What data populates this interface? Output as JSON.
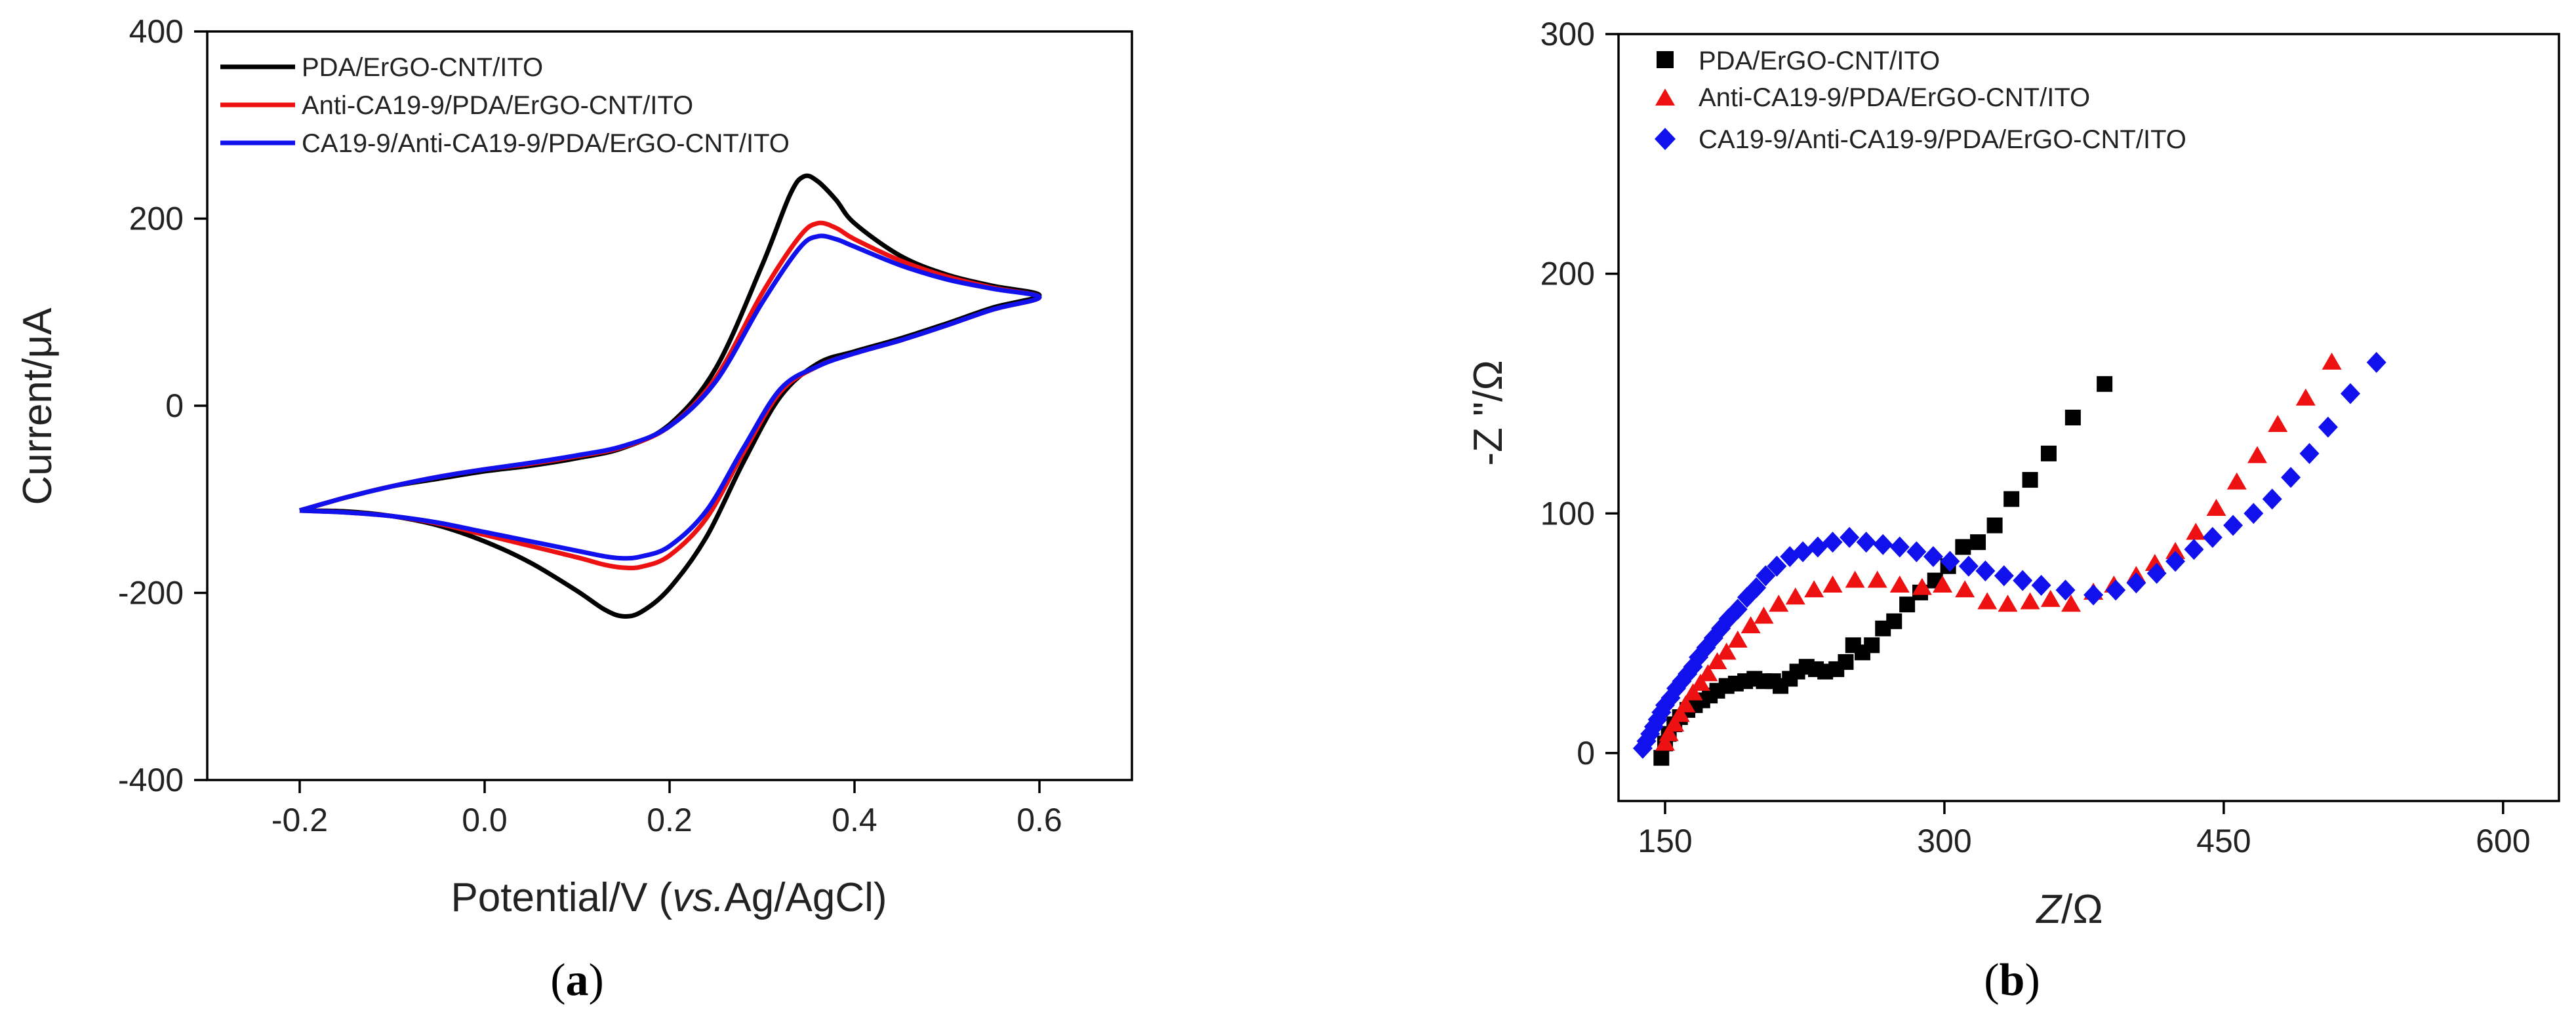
{
  "chart_data": [
    {
      "type": "line",
      "panel": "a",
      "panel_label": "a",
      "xlabel": "Potential/V",
      "xlabel_suffix_italic": "vs.",
      "xlabel_suffix": "Ag/AgCl",
      "ylabel": "Current/μA",
      "xlim": [
        -0.3,
        0.7
      ],
      "ylim": [
        -400,
        400
      ],
      "xticks": [
        -0.2,
        0.0,
        0.2,
        0.4,
        0.6
      ],
      "xtick_labels": [
        "-0.2",
        "0.0",
        "0.2",
        "0.4",
        "0.6"
      ],
      "yticks": [
        -400,
        -200,
        0,
        200,
        400
      ],
      "ytick_labels": [
        "-400",
        "-200",
        "0",
        "200",
        "400"
      ],
      "legend_position": "top-left",
      "series": [
        {
          "name": "PDA/ErGO-CNT/ITO",
          "color": "#000000",
          "points": [
            [
              -0.2,
              -112
            ],
            [
              -0.15,
              -98
            ],
            [
              -0.1,
              -86
            ],
            [
              -0.05,
              -78
            ],
            [
              0.0,
              -70
            ],
            [
              0.05,
              -64
            ],
            [
              0.1,
              -56
            ],
            [
              0.15,
              -45
            ],
            [
              0.2,
              -20
            ],
            [
              0.25,
              40
            ],
            [
              0.3,
              150
            ],
            [
              0.33,
              225
            ],
            [
              0.345,
              245
            ],
            [
              0.36,
              240
            ],
            [
              0.38,
              220
            ],
            [
              0.4,
              195
            ],
            [
              0.45,
              160
            ],
            [
              0.5,
              140
            ],
            [
              0.55,
              128
            ],
            [
              0.6,
              118
            ],
            [
              0.55,
              105
            ],
            [
              0.5,
              88
            ],
            [
              0.45,
              72
            ],
            [
              0.4,
              58
            ],
            [
              0.36,
              45
            ],
            [
              0.32,
              10
            ],
            [
              0.28,
              -60
            ],
            [
              0.24,
              -140
            ],
            [
              0.2,
              -195
            ],
            [
              0.17,
              -220
            ],
            [
              0.15,
              -225
            ],
            [
              0.13,
              -218
            ],
            [
              0.1,
              -198
            ],
            [
              0.05,
              -168
            ],
            [
              0.0,
              -145
            ],
            [
              -0.05,
              -128
            ],
            [
              -0.1,
              -118
            ],
            [
              -0.15,
              -113
            ],
            [
              -0.2,
              -112
            ]
          ]
        },
        {
          "name": "Anti-CA19-9/PDA/ErGO-CNT/ITO",
          "color": "#ee1111",
          "points": [
            [
              -0.2,
              -112
            ],
            [
              -0.15,
              -98
            ],
            [
              -0.1,
              -86
            ],
            [
              -0.05,
              -76
            ],
            [
              0.0,
              -68
            ],
            [
              0.05,
              -62
            ],
            [
              0.1,
              -54
            ],
            [
              0.15,
              -44
            ],
            [
              0.2,
              -22
            ],
            [
              0.25,
              30
            ],
            [
              0.3,
              120
            ],
            [
              0.34,
              180
            ],
            [
              0.36,
              195
            ],
            [
              0.38,
              190
            ],
            [
              0.4,
              178
            ],
            [
              0.45,
              155
            ],
            [
              0.5,
              138
            ],
            [
              0.55,
              126
            ],
            [
              0.6,
              116
            ],
            [
              0.55,
              103
            ],
            [
              0.5,
              86
            ],
            [
              0.45,
              70
            ],
            [
              0.4,
              56
            ],
            [
              0.36,
              42
            ],
            [
              0.32,
              15
            ],
            [
              0.28,
              -50
            ],
            [
              0.24,
              -120
            ],
            [
              0.2,
              -160
            ],
            [
              0.17,
              -172
            ],
            [
              0.15,
              -173
            ],
            [
              0.13,
              -170
            ],
            [
              0.1,
              -162
            ],
            [
              0.05,
              -150
            ],
            [
              0.0,
              -138
            ],
            [
              -0.05,
              -126
            ],
            [
              -0.1,
              -118
            ],
            [
              -0.15,
              -114
            ],
            [
              -0.2,
              -112
            ]
          ]
        },
        {
          "name": "CA19-9/Anti-CA19-9/PDA/ErGO-CNT/ITO",
          "color": "#1111ee",
          "points": [
            [
              -0.2,
              -112
            ],
            [
              -0.15,
              -98
            ],
            [
              -0.1,
              -86
            ],
            [
              -0.05,
              -76
            ],
            [
              0.0,
              -68
            ],
            [
              0.05,
              -61
            ],
            [
              0.1,
              -53
            ],
            [
              0.15,
              -43
            ],
            [
              0.2,
              -22
            ],
            [
              0.25,
              26
            ],
            [
              0.3,
              110
            ],
            [
              0.34,
              168
            ],
            [
              0.36,
              181
            ],
            [
              0.38,
              178
            ],
            [
              0.4,
              170
            ],
            [
              0.45,
              150
            ],
            [
              0.5,
              135
            ],
            [
              0.55,
              125
            ],
            [
              0.6,
              116
            ],
            [
              0.55,
              103
            ],
            [
              0.5,
              86
            ],
            [
              0.45,
              70
            ],
            [
              0.4,
              56
            ],
            [
              0.36,
              42
            ],
            [
              0.32,
              18
            ],
            [
              0.28,
              -45
            ],
            [
              0.24,
              -112
            ],
            [
              0.2,
              -150
            ],
            [
              0.17,
              -161
            ],
            [
              0.15,
              -163
            ],
            [
              0.13,
              -161
            ],
            [
              0.1,
              -155
            ],
            [
              0.05,
              -145
            ],
            [
              0.0,
              -135
            ],
            [
              -0.05,
              -125
            ],
            [
              -0.1,
              -118
            ],
            [
              -0.15,
              -114
            ],
            [
              -0.2,
              -112
            ]
          ]
        }
      ]
    },
    {
      "type": "scatter",
      "panel": "b",
      "panel_label": "b",
      "xlabel": "Z",
      "xlabel_unit": "/Ω",
      "ylabel": "-Z \"/Ω",
      "xlim": [
        125,
        630
      ],
      "ylim": [
        -20,
        300
      ],
      "xticks": [
        150,
        300,
        450,
        600
      ],
      "xtick_labels": [
        "150",
        "300",
        "450",
        "600"
      ],
      "yticks": [
        0,
        100,
        200,
        300
      ],
      "ytick_labels": [
        "0",
        "100",
        "200",
        "300"
      ],
      "legend_position": "top-left",
      "series": [
        {
          "name": "PDA/ErGO-CNT/ITO",
          "marker": "square",
          "color": "#000000",
          "points": [
            [
              148,
              -2
            ],
            [
              150,
              4
            ],
            [
              152,
              8
            ],
            [
              155,
              12
            ],
            [
              158,
              15
            ],
            [
              162,
              18
            ],
            [
              166,
              20
            ],
            [
              170,
              22
            ],
            [
              174,
              24
            ],
            [
              178,
              26
            ],
            [
              183,
              28
            ],
            [
              188,
              29
            ],
            [
              193,
              30
            ],
            [
              198,
              31
            ],
            [
              203,
              30
            ],
            [
              208,
              30
            ],
            [
              212,
              28
            ],
            [
              217,
              31
            ],
            [
              221,
              34
            ],
            [
              226,
              36
            ],
            [
              231,
              35
            ],
            [
              236,
              34
            ],
            [
              242,
              35
            ],
            [
              247,
              38
            ],
            [
              251,
              45
            ],
            [
              256,
              42
            ],
            [
              261,
              45
            ],
            [
              267,
              52
            ],
            [
              273,
              55
            ],
            [
              280,
              62
            ],
            [
              287,
              67
            ],
            [
              295,
              72
            ],
            [
              302,
              78
            ],
            [
              310,
              86
            ],
            [
              318,
              88
            ],
            [
              327,
              95
            ],
            [
              336,
              106
            ],
            [
              346,
              114
            ],
            [
              356,
              125
            ],
            [
              369,
              140
            ],
            [
              386,
              154
            ]
          ]
        },
        {
          "name": "Anti-CA19-9/PDA/ErGO-CNT/ITO",
          "marker": "triangle",
          "color": "#ee1111",
          "points": [
            [
              150,
              4
            ],
            [
              152,
              8
            ],
            [
              155,
              12
            ],
            [
              158,
              16
            ],
            [
              161,
              20
            ],
            [
              165,
              25
            ],
            [
              169,
              29
            ],
            [
              173,
              33
            ],
            [
              178,
              38
            ],
            [
              183,
              42
            ],
            [
              189,
              47
            ],
            [
              196,
              53
            ],
            [
              203,
              57
            ],
            [
              211,
              62
            ],
            [
              220,
              65
            ],
            [
              230,
              68
            ],
            [
              240,
              70
            ],
            [
              252,
              72
            ],
            [
              264,
              72
            ],
            [
              276,
              70
            ],
            [
              288,
              69
            ],
            [
              299,
              70
            ],
            [
              311,
              68
            ],
            [
              323,
              63
            ],
            [
              334,
              62
            ],
            [
              346,
              63
            ],
            [
              357,
              64
            ],
            [
              368,
              62
            ],
            [
              380,
              67
            ],
            [
              391,
              70
            ],
            [
              403,
              74
            ],
            [
              413,
              79
            ],
            [
              424,
              84
            ],
            [
              435,
              92
            ],
            [
              446,
              102
            ],
            [
              457,
              113
            ],
            [
              468,
              124
            ],
            [
              479,
              137
            ],
            [
              494,
              148
            ],
            [
              508,
              163
            ]
          ]
        },
        {
          "name": "CA19-9/Anti-CA19-9/PDA/ErGO-CNT/ITO",
          "marker": "diamond",
          "color": "#1111ee",
          "points": [
            [
              138,
              2
            ],
            [
              140,
              5
            ],
            [
              142,
              8
            ],
            [
              144,
              11
            ],
            [
              146,
              14
            ],
            [
              148,
              17
            ],
            [
              150,
              20
            ],
            [
              153,
              23
            ],
            [
              156,
              27
            ],
            [
              159,
              30
            ],
            [
              162,
              33
            ],
            [
              165,
              36
            ],
            [
              168,
              40
            ],
            [
              172,
              44
            ],
            [
              176,
              48
            ],
            [
              180,
              52
            ],
            [
              184,
              56
            ],
            [
              189,
              60
            ],
            [
              194,
              65
            ],
            [
              199,
              69
            ],
            [
              204,
              74
            ],
            [
              210,
              78
            ],
            [
              217,
              82
            ],
            [
              224,
              84
            ],
            [
              232,
              86
            ],
            [
              240,
              88
            ],
            [
              249,
              90
            ],
            [
              258,
              88
            ],
            [
              267,
              87
            ],
            [
              276,
              86
            ],
            [
              285,
              84
            ],
            [
              294,
              82
            ],
            [
              303,
              80
            ],
            [
              313,
              78
            ],
            [
              322,
              76
            ],
            [
              332,
              74
            ],
            [
              342,
              72
            ],
            [
              352,
              70
            ],
            [
              365,
              68
            ],
            [
              380,
              66
            ],
            [
              392,
              68
            ],
            [
              403,
              71
            ],
            [
              414,
              75
            ],
            [
              424,
              80
            ],
            [
              434,
              85
            ],
            [
              444,
              90
            ],
            [
              455,
              95
            ],
            [
              466,
              100
            ],
            [
              476,
              106
            ],
            [
              486,
              115
            ],
            [
              496,
              125
            ],
            [
              506,
              136
            ],
            [
              518,
              150
            ],
            [
              532,
              163
            ]
          ]
        }
      ]
    }
  ]
}
